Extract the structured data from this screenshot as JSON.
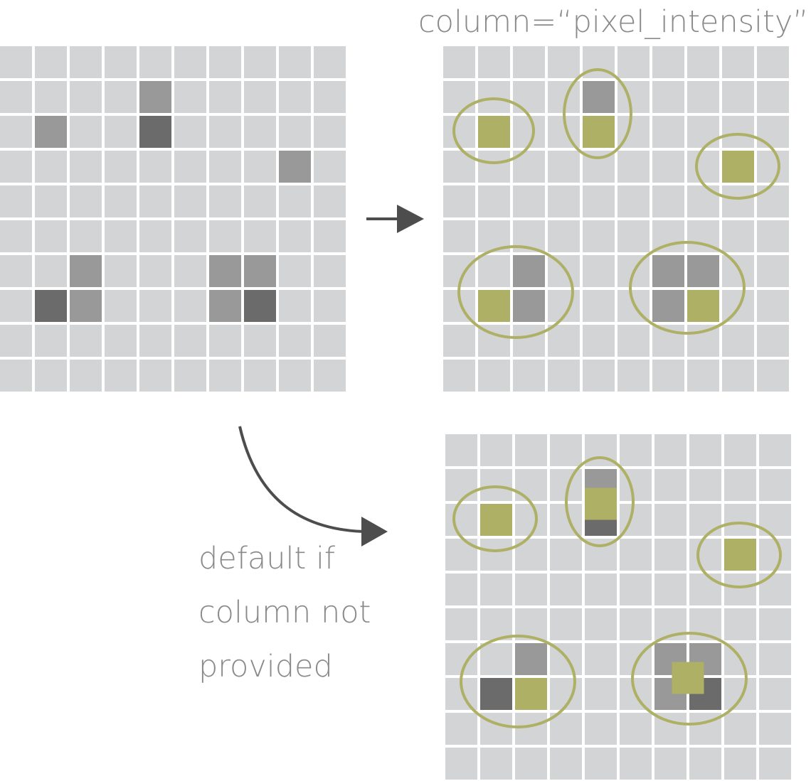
{
  "colors": {
    "background": "#ffffff",
    "cell_light": "#d3d4d6",
    "cell_medium": "#999999",
    "cell_dark": "#6b6b6b",
    "highlight_fill": "#adb065",
    "circle_stroke": "#adb065",
    "arrow": "#4d4d4d",
    "label_text": "#8a8a8a"
  },
  "labels": {
    "column_param": "column=“pixel_intensity”",
    "default_line1": "default if",
    "default_line2": "column not",
    "default_line3": "provided"
  },
  "grids": {
    "input": {
      "rows": 10,
      "cols": 10,
      "cells": [
        {
          "row": 1,
          "col": 4,
          "shade": "medium"
        },
        {
          "row": 2,
          "col": 1,
          "shade": "medium"
        },
        {
          "row": 2,
          "col": 4,
          "shade": "dark"
        },
        {
          "row": 3,
          "col": 8,
          "shade": "medium"
        },
        {
          "row": 6,
          "col": 2,
          "shade": "medium"
        },
        {
          "row": 6,
          "col": 6,
          "shade": "medium"
        },
        {
          "row": 6,
          "col": 7,
          "shade": "medium"
        },
        {
          "row": 7,
          "col": 1,
          "shade": "dark"
        },
        {
          "row": 7,
          "col": 2,
          "shade": "medium"
        },
        {
          "row": 7,
          "col": 6,
          "shade": "medium"
        },
        {
          "row": 7,
          "col": 7,
          "shade": "dark"
        }
      ]
    },
    "with_column": {
      "rows": 10,
      "cols": 10,
      "cells": [
        {
          "row": 1,
          "col": 4,
          "shade": "medium"
        },
        {
          "row": 2,
          "col": 1,
          "shade": "highlight"
        },
        {
          "row": 2,
          "col": 4,
          "shade": "highlight"
        },
        {
          "row": 3,
          "col": 8,
          "shade": "highlight"
        },
        {
          "row": 6,
          "col": 2,
          "shade": "medium"
        },
        {
          "row": 6,
          "col": 6,
          "shade": "medium"
        },
        {
          "row": 6,
          "col": 7,
          "shade": "medium"
        },
        {
          "row": 7,
          "col": 1,
          "shade": "highlight"
        },
        {
          "row": 7,
          "col": 2,
          "shade": "medium"
        },
        {
          "row": 7,
          "col": 6,
          "shade": "medium"
        },
        {
          "row": 7,
          "col": 7,
          "shade": "highlight"
        }
      ]
    },
    "default": {
      "rows": 10,
      "cols": 10,
      "cells": [
        {
          "row": 1,
          "col": 4,
          "shade": "medium"
        },
        {
          "row": 2,
          "col": 1,
          "shade": "highlight"
        },
        {
          "row": 2,
          "col": 4,
          "shade": "dark"
        },
        {
          "row": 3,
          "col": 8,
          "shade": "highlight"
        },
        {
          "row": 6,
          "col": 2,
          "shade": "medium"
        },
        {
          "row": 6,
          "col": 6,
          "shade": "medium"
        },
        {
          "row": 6,
          "col": 7,
          "shade": "medium"
        },
        {
          "row": 7,
          "col": 1,
          "shade": "dark"
        },
        {
          "row": 7,
          "col": 2,
          "shade": "highlight"
        },
        {
          "row": 7,
          "col": 6,
          "shade": "medium"
        },
        {
          "row": 7,
          "col": 7,
          "shade": "dark"
        }
      ]
    }
  }
}
